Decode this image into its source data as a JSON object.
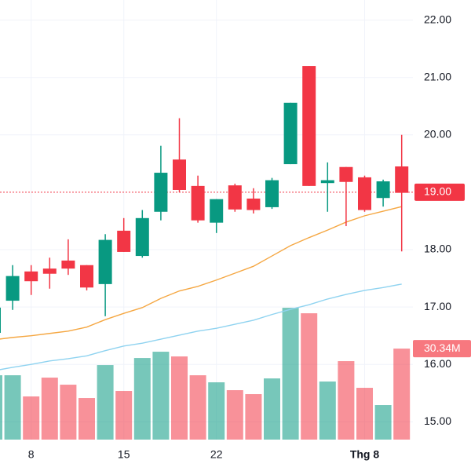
{
  "chart_data": {
    "type": "candlestick",
    "categories": [
      null,
      null,
      "8",
      null,
      null,
      null,
      null,
      "15",
      null,
      null,
      null,
      null,
      "22",
      null,
      null,
      null,
      null,
      null,
      null,
      null,
      "Thg 8",
      null,
      null
    ],
    "open": [
      16.55,
      17.11,
      17.62,
      17.67,
      17.81,
      17.73,
      17.4,
      18.33,
      17.89,
      18.66,
      19.57,
      19.11,
      18.47,
      19.12,
      18.89,
      18.74,
      19.49,
      21.2,
      19.16,
      19.44,
      19.26,
      18.9,
      19.45
    ],
    "high": [
      17.05,
      17.73,
      17.73,
      17.86,
      18.18,
      17.73,
      18.27,
      18.55,
      18.69,
      19.81,
      20.29,
      19.29,
      18.88,
      19.15,
      19.07,
      19.25,
      20.56,
      21.2,
      19.52,
      19.44,
      19.29,
      19.22,
      20.0
    ],
    "low": [
      16.45,
      16.95,
      17.21,
      17.32,
      17.56,
      17.29,
      16.84,
      17.96,
      17.86,
      18.51,
      19.0,
      18.47,
      18.29,
      18.66,
      18.63,
      18.71,
      19.49,
      19.11,
      18.66,
      18.41,
      18.66,
      18.75,
      17.97
    ],
    "close": [
      16.99,
      17.54,
      17.45,
      17.58,
      17.67,
      17.34,
      18.17,
      17.96,
      18.55,
      19.34,
      19.04,
      18.51,
      18.88,
      18.7,
      18.69,
      19.21,
      20.56,
      19.11,
      19.21,
      19.18,
      18.69,
      19.19,
      18.99
    ],
    "up_color": "#089981",
    "down_color": "#f23645",
    "volume": [
      21.45,
      21.45,
      14.39,
      20.67,
      18.31,
      13.86,
      24.85,
      16.22,
      27.2,
      29.3,
      27.73,
      21.45,
      19.1,
      16.48,
      15.17,
      20.4,
      43.95,
      42.12,
      19.36,
      26.16,
      17.27,
      11.51,
      30.34
    ],
    "last_volume_label": "30.34M",
    "volume_lim": [
      0,
      45.8
    ],
    "series": [
      {
        "color": "#f5a742",
        "values": [
          16.43,
          16.47,
          16.5,
          16.54,
          16.58,
          16.65,
          16.78,
          16.89,
          16.99,
          17.15,
          17.28,
          17.36,
          17.47,
          17.59,
          17.71,
          17.89,
          18.07,
          18.21,
          18.34,
          18.48,
          18.59,
          18.67,
          18.75
        ]
      },
      {
        "color": "#8fd3f0",
        "values": [
          15.89,
          15.95,
          16.0,
          16.06,
          16.1,
          16.15,
          16.24,
          16.32,
          16.37,
          16.44,
          16.51,
          16.58,
          16.63,
          16.7,
          16.77,
          16.87,
          16.96,
          17.04,
          17.14,
          17.22,
          17.29,
          17.34,
          17.4
        ]
      }
    ],
    "last_price": {
      "value": 19,
      "label": "19.00"
    },
    "ylim": [
      14.69,
      22.35
    ],
    "yticks": [
      {
        "value": 15,
        "label": "15.00"
      },
      {
        "value": 16,
        "label": "16.00"
      },
      {
        "value": 17,
        "label": "17.00"
      },
      {
        "value": 18,
        "label": "18.00"
      },
      {
        "value": 20,
        "label": "20.00"
      },
      {
        "value": 21,
        "label": "21.00"
      },
      {
        "value": 22,
        "label": "22.00"
      }
    ],
    "grid": true
  }
}
